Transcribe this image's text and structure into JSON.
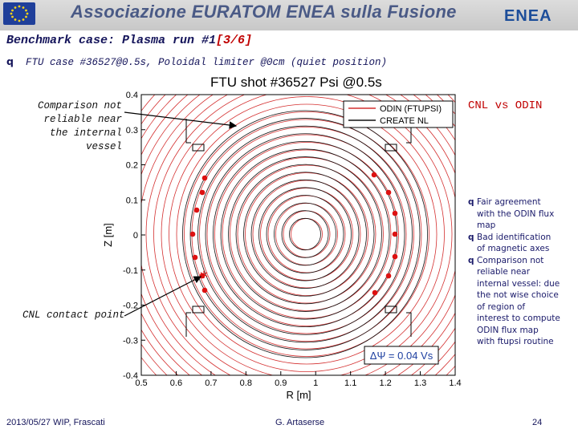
{
  "banner": {
    "association_text": "Associazione EURATOM ENEA sulla Fusione",
    "logo_text": "ENEA"
  },
  "slide": {
    "title_prefix": "Benchmark case: Plasma run #1",
    "title_page": "[3/6]",
    "bullet_mark": "q",
    "bullet_text": "FTU case #36527@0.5s",
    "bullet_suffix": ", Poloidal limiter @0cm (quiet position)"
  },
  "figure": {
    "title": "FTU shot #36527 Psi @0.5s",
    "xlabel": "R [m]",
    "ylabel": "Z [m]",
    "x_ticks": [
      "0.5",
      "0.6",
      "0.7",
      "0.8",
      "0.9",
      "1",
      "1.1",
      "1.2",
      "1.3",
      "1.4"
    ],
    "y_ticks": [
      "0.4",
      "0.3",
      "0.2",
      "0.1",
      "0",
      "-0.1",
      "-0.2",
      "-0.3",
      "-0.4"
    ],
    "legend": [
      "ODIN (FTUPSI)",
      "CREATE NL"
    ],
    "delta_psi_label": "ΔΨ = 0.04 Vs",
    "colors": {
      "odin": "#d43030",
      "create_nl": "#111111",
      "cnl_points": "#dd1111"
    }
  },
  "annotations": {
    "comparison": [
      "Comparison not",
      "reliable near",
      "the internal",
      "vessel"
    ],
    "contact_point": "CNL contact point",
    "cnl_vs_odin": "CNL vs ODIN"
  },
  "right_list": {
    "mark": "q",
    "items": [
      [
        "Fair agreement",
        "with the ODIN flux",
        "map"
      ],
      [
        "Bad identification",
        "of magnetic axes"
      ],
      [
        "Comparison not",
        "reliable near",
        "internal vessel: due",
        "the not wise choice",
        "of region of",
        "interest to compute",
        "ODIN flux map",
        "with ftupsi routine"
      ]
    ]
  },
  "footer": {
    "date": "2013/05/27   WIP, Frascati",
    "author": "G. Artaserse",
    "page": "24"
  }
}
